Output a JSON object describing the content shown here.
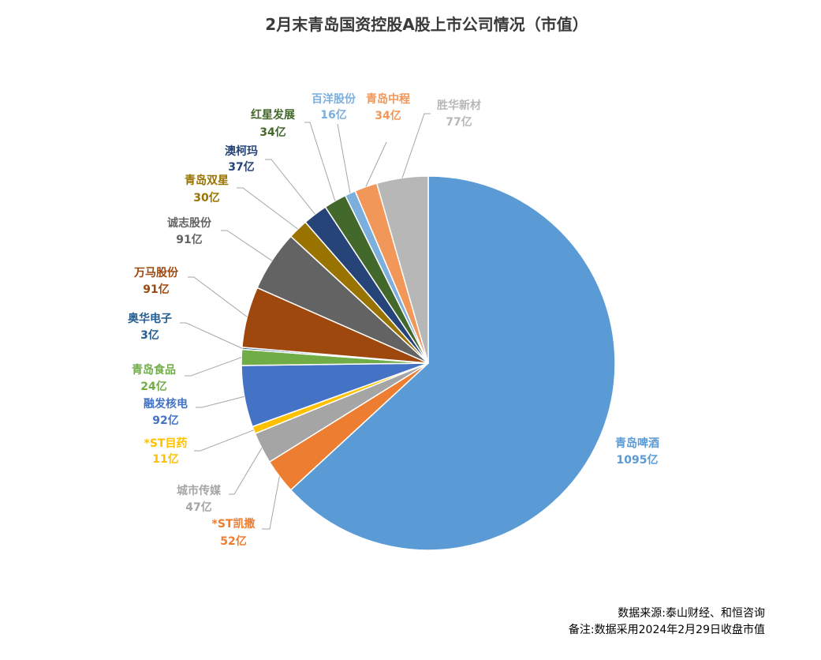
{
  "chart_data": {
    "type": "pie",
    "title": "2月末青岛国资控股A股上市公司情况（市值）",
    "legend": false,
    "value_unit": "亿",
    "categories": [
      "青岛啤酒",
      "*ST凯撒",
      "城市传媒",
      "*ST目药",
      "融发核电",
      "青岛食品",
      "奥华电子",
      "万马股份",
      "诚志股份",
      "青岛双星",
      "澳柯玛",
      "红星发展",
      "百洋股份",
      "青岛中程",
      "胜华新材"
    ],
    "values": [
      1095,
      52,
      47,
      11,
      92,
      24,
      3,
      91,
      91,
      30,
      37,
      34,
      16,
      34,
      77
    ],
    "colors": [
      "#5B9BD5",
      "#ED7D31",
      "#A5A5A5",
      "#FFC000",
      "#4472C4",
      "#70AD47",
      "#255E91",
      "#9E480E",
      "#636363",
      "#997300",
      "#264478",
      "#43682B",
      "#7CAFDD",
      "#F1975A",
      "#B7B7B7"
    ]
  },
  "footer": {
    "source": "数据来源:泰山财经、和恒咨询",
    "note": "备注:数据采用2024年2月29日收盘市值"
  }
}
